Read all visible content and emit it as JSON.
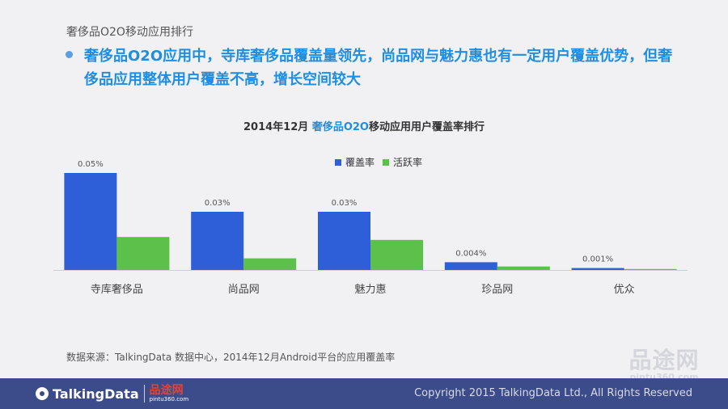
{
  "header": {
    "section_title": "奢侈品O2O移动应用排行",
    "headline": "奢侈品O2O应用中，寺库奢侈品覆盖量领先，尚品网与魅力惠也有一定用户覆盖优势，但奢侈品应用整体用户覆盖不高，增长空间较大"
  },
  "colors": {
    "coverage": "#2e5fd8",
    "activity": "#5cc14a",
    "headline": "#1f8ee0",
    "footer": "#3c4b8a"
  },
  "chart_data": {
    "type": "bar",
    "title_prefix": "2014年12月",
    "title_accent": "奢侈品O2O",
    "title_suffix": "移动应用用户覆盖率排行",
    "categories": [
      "寺库奢侈品",
      "尚品网",
      "魅力惠",
      "珍品网",
      "优众"
    ],
    "series": [
      {
        "name": "覆盖率",
        "values": [
          0.05,
          0.03,
          0.03,
          0.004,
          0.001
        ]
      },
      {
        "name": "活跃率",
        "values": [
          0.017,
          0.006,
          0.0155,
          0.0018,
          0.0005
        ]
      }
    ],
    "data_labels": [
      "0.05%",
      "0.03%",
      "0.03%",
      "0.004%",
      "0.001%"
    ],
    "unit": "%",
    "ylim": [
      0,
      0.05
    ],
    "legend_position": "top-center",
    "grid": false
  },
  "source_note": "数据来源：TalkingData 数据中心，2014年12月Android平台的应用覆盖率",
  "footer": {
    "brand": "TalkingData",
    "partner_name": "品途网",
    "partner_site": "pintu360.com",
    "copyright": "Copyright 2015 TalkingData Ltd., All Rights Reserved"
  },
  "watermark": {
    "name": "品途网",
    "site": "pintu360.com"
  }
}
